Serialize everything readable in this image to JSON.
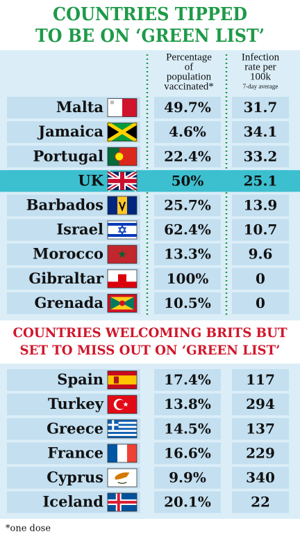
{
  "title": [
    "COUNTRIES TIPPED",
    "TO BE ON ‘GREEN LIST’"
  ],
  "header": {
    "vaccinated": [
      "Percentage",
      "of",
      "population",
      "vaccinated*"
    ],
    "infection": [
      "Infection",
      "rate per",
      "100k"
    ],
    "infection_note": "7-day average"
  },
  "green_list": {
    "highlight_row": 3,
    "rows": [
      [
        "Malta",
        "49.7%",
        "31.7"
      ],
      [
        "Jamaica",
        "4.6%",
        "34.1"
      ],
      [
        "Portugal",
        "22.4%",
        "33.2"
      ],
      [
        "UK",
        "50%",
        "25.1"
      ],
      [
        "Barbados",
        "25.7%",
        "13.9"
      ],
      [
        "Israel",
        "62.4%",
        "10.7"
      ],
      [
        "Morocco",
        "13.3%",
        "9.6"
      ],
      [
        "Gibraltar",
        "100%",
        "0"
      ],
      [
        "Grenada",
        "10.5%",
        "0"
      ]
    ]
  },
  "subtitle": [
    "COUNTRIES WELCOMING BRITS BUT",
    "SET TO MISS OUT ON ‘GREEN LIST’"
  ],
  "missing_list": {
    "rows": [
      [
        "Spain",
        "17.4%",
        "117"
      ],
      [
        "Turkey",
        "13.8%",
        "294"
      ],
      [
        "Greece",
        "14.5%",
        "137"
      ],
      [
        "France",
        "16.6%",
        "229"
      ],
      [
        "Cyprus",
        "9.9%",
        "340"
      ],
      [
        "Iceland",
        "20.1%",
        "22"
      ]
    ]
  },
  "footnote": "*one dose"
}
